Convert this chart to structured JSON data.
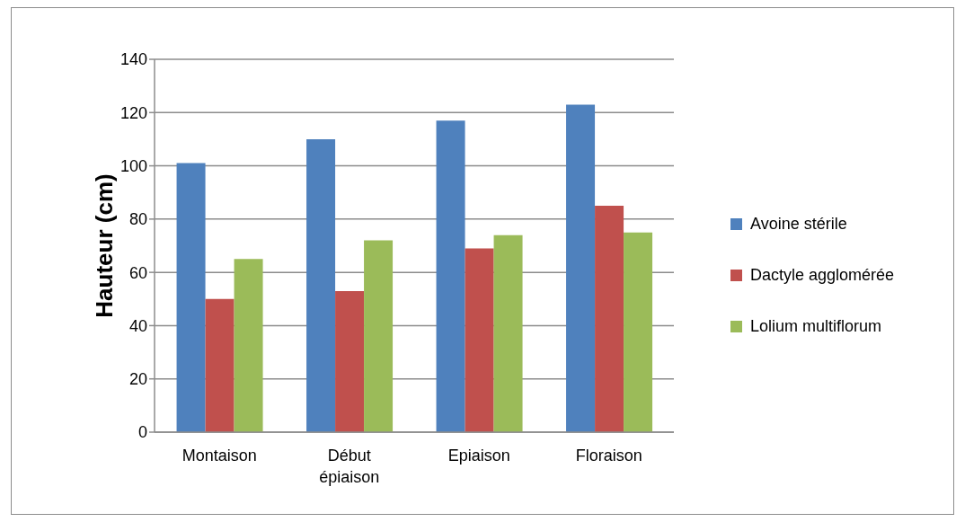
{
  "chart_data": {
    "type": "bar",
    "ylabel": "Hauteur (cm)",
    "categories": [
      "Montaison",
      "Début épiaison",
      "Epiaison",
      "Floraison"
    ],
    "series": [
      {
        "name": "Avoine stérile",
        "color": "#4f81bd",
        "values": [
          101,
          110,
          117,
          123
        ]
      },
      {
        "name": "Dactyle agglomérée",
        "color": "#c0504d",
        "values": [
          50,
          53,
          69,
          85
        ]
      },
      {
        "name": "Lolium multiflorum",
        "color": "#9bbb59",
        "values": [
          65,
          72,
          74,
          75
        ]
      }
    ],
    "ylim": [
      0,
      140
    ],
    "yticks": [
      0,
      20,
      40,
      60,
      80,
      100,
      120,
      140
    ],
    "grid": "y",
    "legend": "right"
  }
}
